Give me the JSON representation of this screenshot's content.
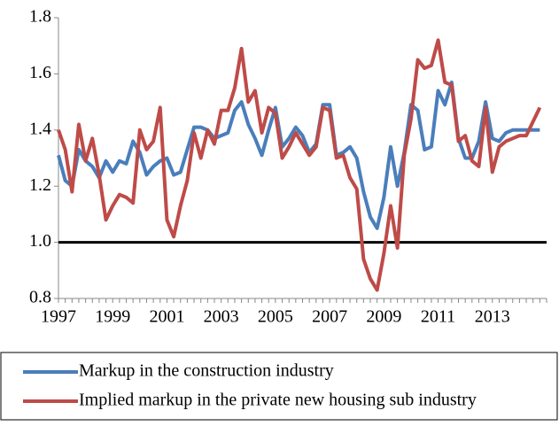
{
  "chart_data": {
    "type": "line",
    "categories": [
      "1997",
      null,
      null,
      null,
      null,
      null,
      null,
      null,
      "1999",
      null,
      null,
      null,
      null,
      null,
      null,
      null,
      "2001",
      null,
      null,
      null,
      null,
      null,
      null,
      null,
      "2003",
      null,
      null,
      null,
      null,
      null,
      null,
      null,
      "2005",
      null,
      null,
      null,
      null,
      null,
      null,
      null,
      "2007",
      null,
      null,
      null,
      null,
      null,
      null,
      null,
      "2009",
      null,
      null,
      null,
      null,
      null,
      null,
      null,
      "2011",
      null,
      null,
      null,
      null,
      null,
      null,
      null,
      "2013",
      null,
      null,
      null,
      null,
      null,
      null,
      null
    ],
    "series": [
      {
        "name": "Markup in the construction industry",
        "color": "#4a7ebb",
        "values": [
          1.31,
          1.22,
          1.2,
          1.33,
          1.29,
          1.27,
          1.23,
          1.29,
          1.25,
          1.29,
          1.28,
          1.36,
          1.32,
          1.24,
          1.27,
          1.29,
          1.3,
          1.24,
          1.25,
          1.33,
          1.41,
          1.41,
          1.4,
          1.37,
          1.38,
          1.39,
          1.47,
          1.5,
          1.42,
          1.37,
          1.31,
          1.4,
          1.48,
          1.34,
          1.37,
          1.41,
          1.38,
          1.32,
          1.35,
          1.49,
          1.49,
          1.31,
          1.32,
          1.34,
          1.3,
          1.18,
          1.09,
          1.05,
          1.16,
          1.34,
          1.2,
          1.32,
          1.49,
          1.47,
          1.33,
          1.34,
          1.54,
          1.49,
          1.57,
          1.37,
          1.3,
          1.3,
          1.36,
          1.5,
          1.37,
          1.36,
          1.39,
          1.4,
          1.4,
          1.4,
          1.4,
          1.4
        ]
      },
      {
        "name": "Implied markup in the private new housing sub industry",
        "color": "#be4b48",
        "values": [
          1.4,
          1.33,
          1.18,
          1.42,
          1.29,
          1.37,
          1.24,
          1.08,
          1.13,
          1.17,
          1.16,
          1.14,
          1.4,
          1.33,
          1.36,
          1.48,
          1.08,
          1.02,
          1.13,
          1.22,
          1.39,
          1.3,
          1.4,
          1.35,
          1.47,
          1.47,
          1.55,
          1.69,
          1.5,
          1.54,
          1.39,
          1.48,
          1.46,
          1.3,
          1.34,
          1.39,
          1.35,
          1.31,
          1.34,
          1.48,
          1.47,
          1.3,
          1.31,
          1.23,
          1.19,
          0.94,
          0.87,
          0.83,
          0.96,
          1.13,
          0.98,
          1.31,
          1.44,
          1.65,
          1.62,
          1.63,
          1.72,
          1.57,
          1.56,
          1.36,
          1.38,
          1.29,
          1.27,
          1.48,
          1.25,
          1.34,
          1.36,
          1.37,
          1.38,
          1.38,
          1.43,
          1.48
        ]
      }
    ],
    "ylim": [
      0.8,
      1.8
    ],
    "yticks": [
      {
        "value": 0.8,
        "label": "0.8"
      },
      {
        "value": 1.0,
        "label": "1.0"
      },
      {
        "value": 1.2,
        "label": "1.2"
      },
      {
        "value": 1.4,
        "label": "1.4"
      },
      {
        "value": 1.6,
        "label": "1.6"
      },
      {
        "value": 1.8,
        "label": "1.8"
      }
    ],
    "reference_line": 1.0,
    "grid": false,
    "legend": "bottom"
  }
}
